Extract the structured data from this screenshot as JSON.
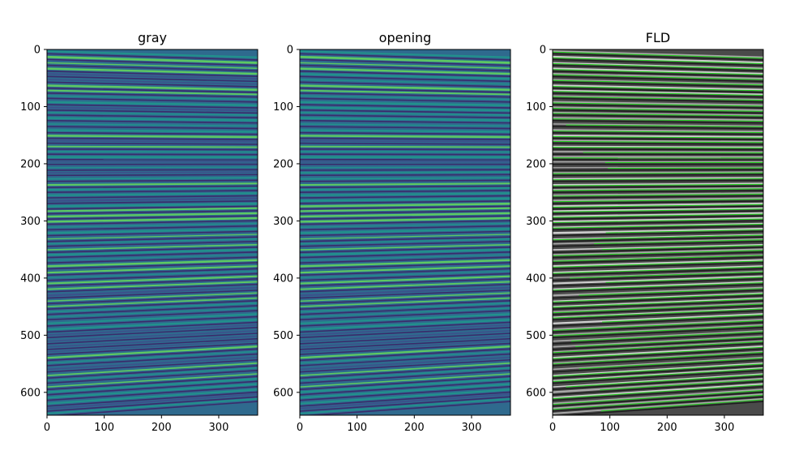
{
  "chart_data": [
    {
      "type": "heatmap",
      "title": "gray",
      "colormap": "viridis",
      "xlim": [
        0,
        368
      ],
      "ylim": [
        640,
        0
      ],
      "x_ticks": [
        0,
        100,
        200,
        300
      ],
      "y_ticks": [
        0,
        100,
        200,
        300,
        400,
        500,
        600
      ],
      "x_tick_labels": [
        "0",
        "100",
        "200",
        "300"
      ],
      "y_tick_labels": [
        "0",
        "100",
        "200",
        "300",
        "400",
        "500",
        "600"
      ]
    },
    {
      "type": "heatmap",
      "title": "opening",
      "colormap": "viridis",
      "xlim": [
        0,
        368
      ],
      "ylim": [
        640,
        0
      ],
      "x_ticks": [
        0,
        100,
        200,
        300
      ],
      "y_ticks": [
        0,
        100,
        200,
        300,
        400,
        500,
        600
      ],
      "x_tick_labels": [
        "0",
        "100",
        "200",
        "300"
      ],
      "y_tick_labels": [
        "0",
        "100",
        "200",
        "300",
        "400",
        "500",
        "600"
      ]
    },
    {
      "type": "heatmap",
      "title": "FLD",
      "colormap": "gray",
      "overlay_color": "#22c81e",
      "xlim": [
        0,
        368
      ],
      "ylim": [
        640,
        0
      ],
      "x_ticks": [
        0,
        100,
        200,
        300
      ],
      "y_ticks": [
        0,
        100,
        200,
        300,
        400,
        500,
        600
      ],
      "x_tick_labels": [
        "0",
        "100",
        "200",
        "300"
      ],
      "y_tick_labels": [
        "0",
        "100",
        "200",
        "300",
        "400",
        "500",
        "600"
      ]
    }
  ]
}
